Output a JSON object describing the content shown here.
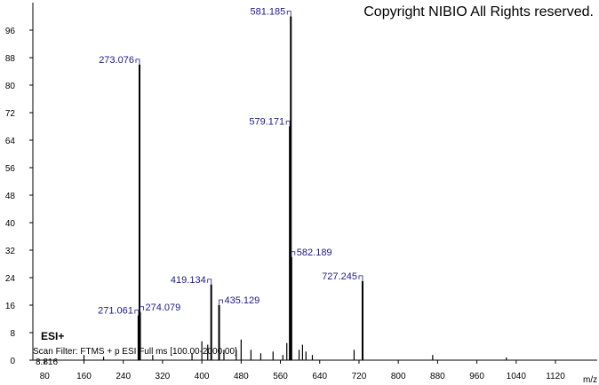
{
  "chart_data": {
    "type": "stem",
    "title": "Copyright NIBIO All Rights reserved.",
    "ionization": "ESI+",
    "scan_filter": "Scan Filter: FTMS + p ESI Full ms [100.00-2000.00]",
    "retention_time": "8.816",
    "x_label": "m/z",
    "xlim": [
      56,
      1205
    ],
    "ylim": [
      0,
      104
    ],
    "xticks": [
      80,
      160,
      240,
      320,
      400,
      480,
      560,
      640,
      720,
      800,
      880,
      960,
      1040,
      1120
    ],
    "yticks": [
      0,
      8,
      16,
      24,
      32,
      40,
      48,
      56,
      64,
      72,
      80,
      88,
      96
    ],
    "color": "#000000",
    "label_color": "#1a1a8c",
    "peaks": {
      "x": [
        271.061,
        273.076,
        274.079,
        419.134,
        435.129,
        579.171,
        581.185,
        582.189,
        727.245
      ],
      "values": [
        13,
        86,
        14,
        22,
        16,
        68,
        100,
        30,
        23
      ]
    },
    "minor_peaks": {
      "x": [
        160,
        200,
        300,
        380,
        400,
        412,
        445,
        470,
        480,
        500,
        520,
        545,
        565,
        573,
        598,
        605,
        612,
        625,
        710,
        870,
        1020
      ],
      "values": [
        1.5,
        1,
        1.5,
        2,
        5.5,
        4.5,
        3,
        3,
        6,
        3,
        2,
        2.5,
        1.5,
        5,
        3,
        4.5,
        2.5,
        1.5,
        3,
        1.5,
        0.8
      ]
    }
  }
}
